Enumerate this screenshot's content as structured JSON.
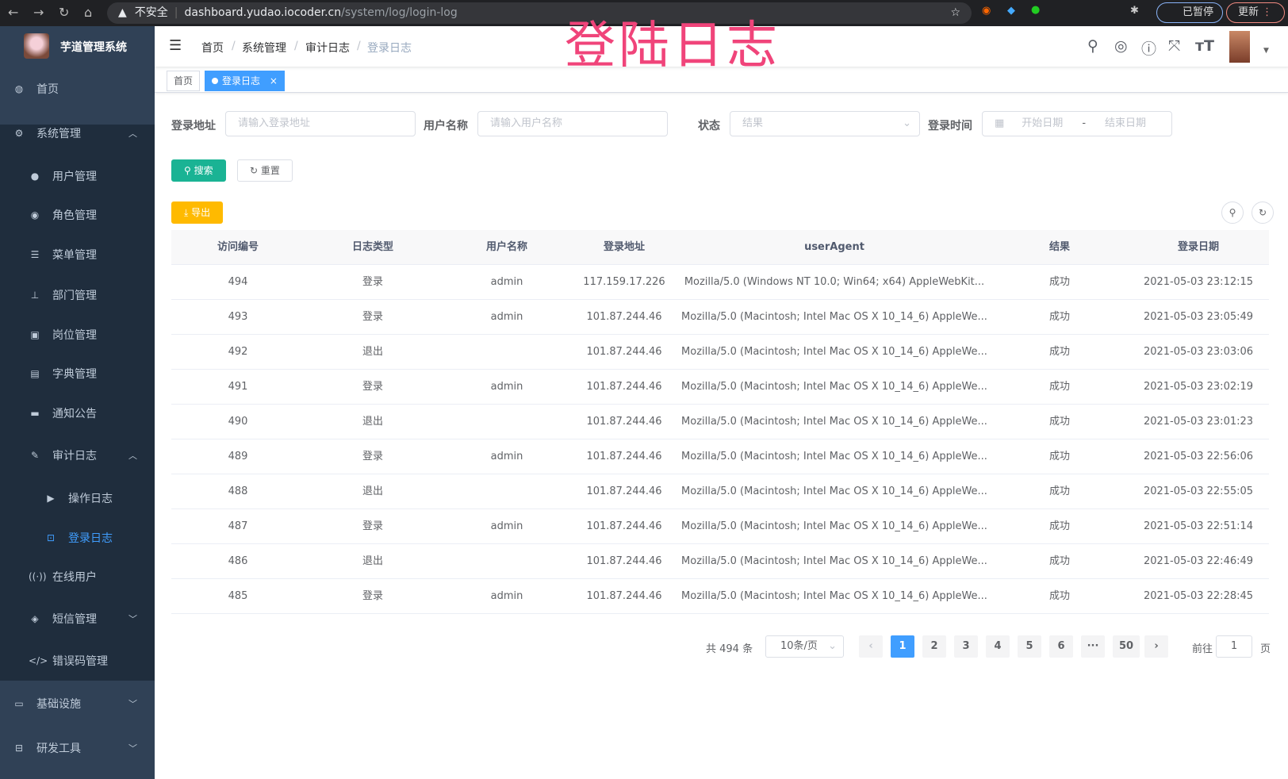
{
  "browser": {
    "security": "不安全",
    "url_host": "dashboard.yudao.iocoder.cn",
    "url_path": "/system/log/login-log",
    "paused": "已暂停",
    "update": "更新"
  },
  "app": {
    "title": "芋道管理系统"
  },
  "overlay_title": "登陆日志",
  "sidebar": {
    "items": [
      {
        "label": "首页",
        "icon": "dashboard-icon",
        "glyph": "◍",
        "level": 0
      },
      {
        "label": "系统管理",
        "icon": "gear-icon",
        "glyph": "⚙",
        "level": 0,
        "arrow": "up"
      },
      {
        "label": "用户管理",
        "icon": "user-icon",
        "glyph": "●",
        "level": 1
      },
      {
        "label": "角色管理",
        "icon": "peoples-icon",
        "glyph": "◉",
        "level": 1
      },
      {
        "label": "菜单管理",
        "icon": "tree-table-icon",
        "glyph": "☰",
        "level": 1
      },
      {
        "label": "部门管理",
        "icon": "tree-icon",
        "glyph": "⊥",
        "level": 1
      },
      {
        "label": "岗位管理",
        "icon": "post-icon",
        "glyph": "▣",
        "level": 1
      },
      {
        "label": "字典管理",
        "icon": "dict-icon",
        "glyph": "▤",
        "level": 1
      },
      {
        "label": "通知公告",
        "icon": "message-icon",
        "glyph": "▬",
        "level": 1
      },
      {
        "label": "审计日志",
        "icon": "log-icon",
        "glyph": "✎",
        "level": 1,
        "arrow": "up"
      },
      {
        "label": "操作日志",
        "icon": "form-icon",
        "glyph": "▶",
        "level": 2
      },
      {
        "label": "登录日志",
        "icon": "logininfor-icon",
        "glyph": "⊡",
        "level": 2,
        "active": true
      },
      {
        "label": "在线用户",
        "icon": "online-icon",
        "glyph": "((·))",
        "level": 1
      },
      {
        "label": "短信管理",
        "icon": "shield-icon",
        "glyph": "◈",
        "level": 1,
        "arrow": "down"
      },
      {
        "label": "错误码管理",
        "icon": "code-icon",
        "glyph": "</>",
        "level": 1
      },
      {
        "label": "基础设施",
        "icon": "monitor-icon",
        "glyph": "▭",
        "level": 0,
        "arrow": "down"
      },
      {
        "label": "研发工具",
        "icon": "tool-icon",
        "glyph": "⊟",
        "level": 0,
        "arrow": "down"
      }
    ]
  },
  "breadcrumb": [
    "首页",
    "系统管理",
    "审计日志",
    "登录日志"
  ],
  "tags": {
    "home": "首页",
    "current": "登录日志",
    "close": "×"
  },
  "form": {
    "address_label": "登录地址",
    "address_placeholder": "请输入登录地址",
    "username_label": "用户名称",
    "username_placeholder": "请输入用户名称",
    "status_label": "状态",
    "status_placeholder": "结果",
    "time_label": "登录时间",
    "start_placeholder": "开始日期",
    "range_sep": "-",
    "end_placeholder": "结束日期",
    "search": "搜索",
    "reset": "重置",
    "export": "导出"
  },
  "table": {
    "columns": [
      "访问编号",
      "日志类型",
      "用户名称",
      "登录地址",
      "userAgent",
      "结果",
      "登录日期"
    ],
    "rows": [
      [
        "494",
        "登录",
        "admin",
        "117.159.17.226",
        "Mozilla/5.0 (Windows NT 10.0; Win64; x64) AppleWebKit...",
        "成功",
        "2021-05-03 23:12:15"
      ],
      [
        "493",
        "登录",
        "admin",
        "101.87.244.46",
        "Mozilla/5.0 (Macintosh; Intel Mac OS X 10_14_6) AppleWe...",
        "成功",
        "2021-05-03 23:05:49"
      ],
      [
        "492",
        "退出",
        "",
        "101.87.244.46",
        "Mozilla/5.0 (Macintosh; Intel Mac OS X 10_14_6) AppleWe...",
        "成功",
        "2021-05-03 23:03:06"
      ],
      [
        "491",
        "登录",
        "admin",
        "101.87.244.46",
        "Mozilla/5.0 (Macintosh; Intel Mac OS X 10_14_6) AppleWe...",
        "成功",
        "2021-05-03 23:02:19"
      ],
      [
        "490",
        "退出",
        "",
        "101.87.244.46",
        "Mozilla/5.0 (Macintosh; Intel Mac OS X 10_14_6) AppleWe...",
        "成功",
        "2021-05-03 23:01:23"
      ],
      [
        "489",
        "登录",
        "admin",
        "101.87.244.46",
        "Mozilla/5.0 (Macintosh; Intel Mac OS X 10_14_6) AppleWe...",
        "成功",
        "2021-05-03 22:56:06"
      ],
      [
        "488",
        "退出",
        "",
        "101.87.244.46",
        "Mozilla/5.0 (Macintosh; Intel Mac OS X 10_14_6) AppleWe...",
        "成功",
        "2021-05-03 22:55:05"
      ],
      [
        "487",
        "登录",
        "admin",
        "101.87.244.46",
        "Mozilla/5.0 (Macintosh; Intel Mac OS X 10_14_6) AppleWe...",
        "成功",
        "2021-05-03 22:51:14"
      ],
      [
        "486",
        "退出",
        "",
        "101.87.244.46",
        "Mozilla/5.0 (Macintosh; Intel Mac OS X 10_14_6) AppleWe...",
        "成功",
        "2021-05-03 22:46:49"
      ],
      [
        "485",
        "登录",
        "admin",
        "101.87.244.46",
        "Mozilla/5.0 (Macintosh; Intel Mac OS X 10_14_6) AppleWe...",
        "成功",
        "2021-05-03 22:28:45"
      ]
    ]
  },
  "pagination": {
    "total": "共 494 条",
    "page_size": "10条/页",
    "pages": [
      "1",
      "2",
      "3",
      "4",
      "5",
      "6",
      "···",
      "50"
    ],
    "current": "1",
    "goto_label": "前往",
    "goto_value": "1",
    "page_unit": "页"
  },
  "colors": {
    "sidebar": "#304156",
    "submenu": "#1f2d3d",
    "primary": "#409eff",
    "search_btn": "#1ab394",
    "export_btn": "#ffba00"
  }
}
